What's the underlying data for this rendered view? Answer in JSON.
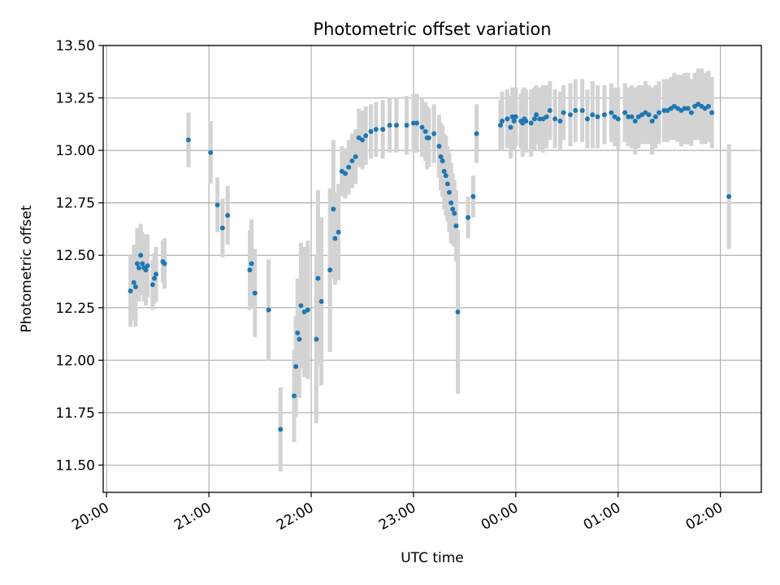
{
  "chart_data": {
    "type": "scatter",
    "title": "Photometric offset variation",
    "xlabel": "UTC time",
    "ylabel": "Photometric offset",
    "x_axis": {
      "kind": "time",
      "ticks": [
        "20:00",
        "21:00",
        "22:00",
        "23:00",
        "00:00",
        "01:00",
        "02:00"
      ],
      "tick_values": [
        "2000-01-01T20:00",
        "2000-01-01T21:00",
        "2000-01-01T22:00",
        "2000-01-01T23:00",
        "2000-01-02T00:00",
        "2000-01-02T01:00",
        "2000-01-02T02:00"
      ],
      "range": [
        "2000-01-01T19:58",
        "2000-01-02T02:24"
      ],
      "tick_label_rotation": 30
    },
    "y_axis": {
      "range": [
        11.37,
        13.5
      ],
      "ticks": [
        11.5,
        11.75,
        12.0,
        12.25,
        12.5,
        12.75,
        13.0,
        13.25,
        13.5
      ],
      "tick_labels": [
        "11.50",
        "11.75",
        "12.00",
        "12.25",
        "12.50",
        "12.75",
        "13.00",
        "13.25",
        "13.50"
      ]
    },
    "grid": true,
    "legend": "none",
    "colors": {
      "marker": "#1f77b4",
      "errorbar": "#d3d3d3",
      "grid": "#b0b0b0"
    },
    "x": [
      "20:14",
      "20:16",
      "20:17",
      "20:18",
      "20:19",
      "20:20",
      "20:21",
      "20:22",
      "20:23",
      "20:24",
      "20:27",
      "20:28",
      "20:29",
      "20:33",
      "20:34",
      "20:48",
      "21:01",
      "21:05",
      "21:08",
      "21:11",
      "21:24",
      "21:25",
      "21:27",
      "21:35",
      "21:42",
      "21:50",
      "21:51",
      "21:52",
      "21:53",
      "21:54",
      "21:56",
      "21:58",
      "22:03",
      "22:04",
      "22:06",
      "22:11",
      "22:13",
      "22:14",
      "22:16",
      "22:18",
      "22:20",
      "22:22",
      "22:24",
      "22:26",
      "22:28",
      "22:30",
      "22:32",
      "22:35",
      "22:38",
      "22:42",
      "22:46",
      "22:50",
      "22:56",
      "23:00",
      "23:02",
      "23:05",
      "23:07",
      "23:08",
      "23:09",
      "23:12",
      "23:15",
      "23:16",
      "23:17",
      "23:18",
      "23:19",
      "23:20",
      "23:21",
      "23:22",
      "23:23",
      "23:24",
      "23:25",
      "23:26",
      "23:32",
      "23:35",
      "23:37",
      "23:51",
      "23:52",
      "23:55",
      "23:57",
      "23:58",
      "23:59",
      "00:00",
      "00:03",
      "00:04",
      "00:05",
      "00:06",
      "00:09",
      "00:11",
      "00:12",
      "00:14",
      "00:16",
      "00:18",
      "00:20",
      "00:23",
      "00:26",
      "00:28",
      "00:32",
      "00:35",
      "00:39",
      "00:42",
      "00:45",
      "00:48",
      "00:52",
      "00:56",
      "00:58",
      "01:00",
      "01:04",
      "01:06",
      "01:08",
      "01:10",
      "01:12",
      "01:14",
      "01:16",
      "01:18",
      "01:20",
      "01:22",
      "01:24",
      "01:27",
      "01:29",
      "01:31",
      "01:33",
      "01:35",
      "01:37",
      "01:39",
      "01:41",
      "01:43",
      "01:45",
      "01:47",
      "01:49",
      "01:51",
      "01:53",
      "01:55",
      "02:05"
    ],
    "y": [
      12.33,
      12.37,
      12.35,
      12.46,
      12.44,
      12.5,
      12.46,
      12.44,
      12.43,
      12.45,
      12.36,
      12.39,
      12.41,
      12.47,
      12.46,
      13.05,
      12.99,
      12.74,
      12.63,
      12.69,
      12.43,
      12.46,
      12.32,
      12.24,
      11.67,
      11.83,
      11.97,
      12.13,
      12.1,
      12.26,
      12.23,
      12.24,
      12.1,
      12.39,
      12.28,
      12.43,
      12.72,
      12.58,
      12.61,
      12.9,
      12.89,
      12.92,
      12.95,
      12.97,
      13.06,
      13.05,
      13.07,
      13.09,
      13.1,
      13.1,
      13.12,
      13.12,
      13.12,
      13.13,
      13.13,
      13.11,
      13.09,
      13.06,
      13.06,
      13.08,
      13.02,
      12.97,
      12.95,
      12.9,
      12.88,
      12.84,
      12.8,
      12.75,
      12.72,
      12.7,
      12.64,
      12.23,
      12.68,
      12.78,
      13.08,
      13.12,
      13.14,
      13.15,
      13.11,
      13.16,
      13.14,
      13.16,
      13.14,
      13.13,
      13.15,
      13.14,
      13.13,
      13.15,
      13.17,
      13.15,
      13.15,
      13.16,
      13.19,
      13.15,
      13.14,
      13.18,
      13.17,
      13.19,
      13.19,
      13.15,
      13.17,
      13.16,
      13.17,
      13.18,
      13.16,
      13.15,
      13.18,
      13.16,
      13.16,
      13.14,
      13.16,
      13.17,
      13.18,
      13.17,
      13.14,
      13.16,
      13.18,
      13.19,
      13.19,
      13.2,
      13.21,
      13.2,
      13.19,
      13.2,
      13.2,
      13.18,
      13.21,
      13.22,
      13.21,
      13.2,
      13.21,
      13.18,
      12.78
    ],
    "yerr": [
      0.17,
      0.18,
      0.19,
      0.17,
      0.16,
      0.15,
      0.15,
      0.16,
      0.17,
      0.15,
      0.12,
      0.12,
      0.13,
      0.1,
      0.12,
      0.13,
      0.15,
      0.13,
      0.14,
      0.14,
      0.19,
      0.21,
      0.21,
      0.24,
      0.2,
      0.22,
      0.24,
      0.26,
      0.28,
      0.3,
      0.31,
      0.33,
      0.4,
      0.42,
      0.4,
      0.39,
      0.33,
      0.22,
      0.23,
      0.12,
      0.12,
      0.13,
      0.13,
      0.13,
      0.14,
      0.14,
      0.14,
      0.13,
      0.13,
      0.14,
      0.13,
      0.13,
      0.14,
      0.14,
      0.14,
      0.14,
      0.14,
      0.15,
      0.14,
      0.14,
      0.15,
      0.16,
      0.17,
      0.18,
      0.19,
      0.18,
      0.19,
      0.19,
      0.17,
      0.16,
      0.17,
      0.39,
      0.1,
      0.1,
      0.14,
      0.12,
      0.14,
      0.14,
      0.15,
      0.14,
      0.14,
      0.14,
      0.13,
      0.16,
      0.15,
      0.15,
      0.16,
      0.15,
      0.14,
      0.15,
      0.16,
      0.15,
      0.14,
      0.14,
      0.14,
      0.13,
      0.15,
      0.15,
      0.15,
      0.14,
      0.16,
      0.15,
      0.14,
      0.14,
      0.14,
      0.15,
      0.14,
      0.14,
      0.15,
      0.16,
      0.15,
      0.14,
      0.15,
      0.14,
      0.16,
      0.15,
      0.15,
      0.15,
      0.15,
      0.15,
      0.16,
      0.16,
      0.17,
      0.17,
      0.17,
      0.16,
      0.16,
      0.17,
      0.18,
      0.17,
      0.17,
      0.17,
      0.25
    ]
  }
}
